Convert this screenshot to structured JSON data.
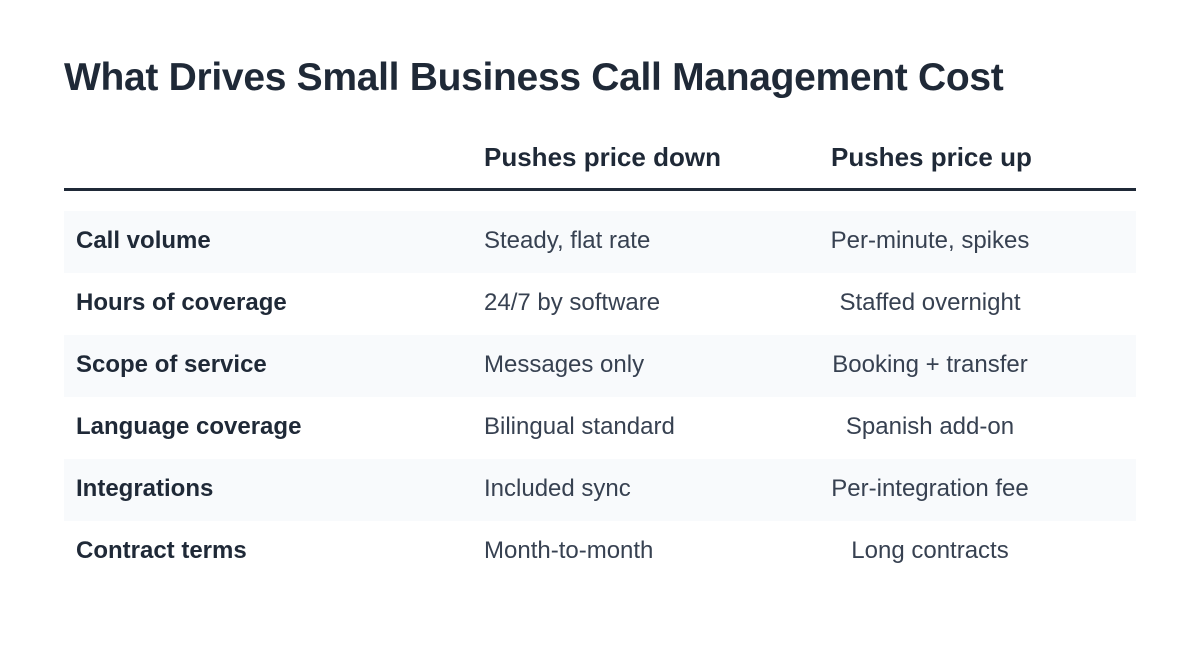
{
  "title": "What Drives Small Business Call Management Cost",
  "table": {
    "headers": {
      "factor": "",
      "down": "Pushes price down",
      "up": "Pushes price up"
    },
    "rows": [
      {
        "factor": "Call volume",
        "down": "Steady, flat rate",
        "up": "Per-minute, spikes"
      },
      {
        "factor": "Hours of coverage",
        "down": "24/7 by software",
        "up": "Staffed overnight"
      },
      {
        "factor": "Scope of service",
        "down": "Messages only",
        "up": "Booking + transfer"
      },
      {
        "factor": "Language coverage",
        "down": "Bilingual standard",
        "up": "Spanish add-on"
      },
      {
        "factor": "Integrations",
        "down": "Included sync",
        "up": "Per-integration fee"
      },
      {
        "factor": "Contract terms",
        "down": "Month-to-month",
        "up": "Long contracts"
      }
    ]
  },
  "colors": {
    "text": "#1f2937",
    "row_shade": "#f8fafc",
    "rule": "#1f2937"
  }
}
